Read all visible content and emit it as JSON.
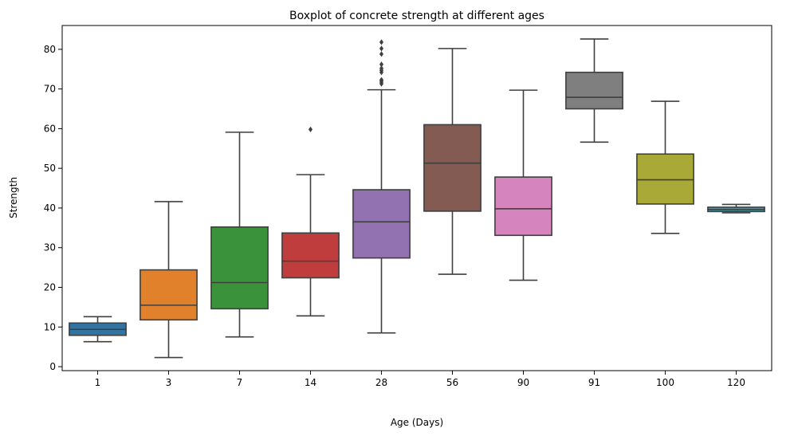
{
  "chart_data": {
    "type": "boxplot",
    "title": "Boxplot of concrete strength at different ages",
    "xlabel": "Age (Days)",
    "ylabel": "Strength",
    "ylim": [
      -1,
      86
    ],
    "yticks": [
      0,
      10,
      20,
      30,
      40,
      50,
      60,
      70,
      80
    ],
    "grid": false,
    "categories": [
      "1",
      "3",
      "7",
      "14",
      "28",
      "56",
      "90",
      "91",
      "100",
      "120"
    ],
    "boxes": [
      {
        "category": "1",
        "whisker_low": 6.3,
        "q1": 7.9,
        "median": 9.4,
        "q3": 11.0,
        "whisker_high": 12.6,
        "outliers": [],
        "color": "#3274a1"
      },
      {
        "category": "3",
        "whisker_low": 2.3,
        "q1": 11.8,
        "median": 15.5,
        "q3": 24.4,
        "whisker_high": 41.6,
        "outliers": [],
        "color": "#e1812c"
      },
      {
        "category": "7",
        "whisker_low": 7.5,
        "q1": 14.6,
        "median": 21.2,
        "q3": 35.2,
        "whisker_high": 59.1,
        "outliers": [],
        "color": "#3a923a"
      },
      {
        "category": "14",
        "whisker_low": 12.8,
        "q1": 22.4,
        "median": 26.6,
        "q3": 33.7,
        "whisker_high": 48.4,
        "outliers": [
          59.8
        ],
        "color": "#c03d3e"
      },
      {
        "category": "28",
        "whisker_low": 8.5,
        "q1": 27.4,
        "median": 36.5,
        "q3": 44.6,
        "whisker_high": 69.8,
        "outliers": [
          71.3,
          71.7,
          72.1,
          72.3,
          74.2,
          74.7,
          75.2,
          76.2,
          78.8,
          80.2,
          81.8
        ],
        "color": "#9372b2"
      },
      {
        "category": "56",
        "whisker_low": 23.3,
        "q1": 39.2,
        "median": 51.3,
        "q3": 61.0,
        "whisker_high": 80.2,
        "outliers": [],
        "color": "#845b53"
      },
      {
        "category": "90",
        "whisker_low": 21.8,
        "q1": 33.1,
        "median": 39.8,
        "q3": 47.8,
        "whisker_high": 69.7,
        "outliers": [],
        "color": "#d684bd"
      },
      {
        "category": "91",
        "whisker_low": 56.6,
        "q1": 65.0,
        "median": 67.9,
        "q3": 74.2,
        "whisker_high": 82.6,
        "outliers": [],
        "color": "#7f7f7f"
      },
      {
        "category": "100",
        "whisker_low": 33.6,
        "q1": 41.0,
        "median": 47.1,
        "q3": 53.6,
        "whisker_high": 66.9,
        "outliers": [],
        "color": "#a9a937"
      },
      {
        "category": "120",
        "whisker_low": 38.8,
        "q1": 39.1,
        "median": 39.6,
        "q3": 40.2,
        "whisker_high": 40.9,
        "outliers": [],
        "color": "#2ea2b8"
      }
    ]
  }
}
